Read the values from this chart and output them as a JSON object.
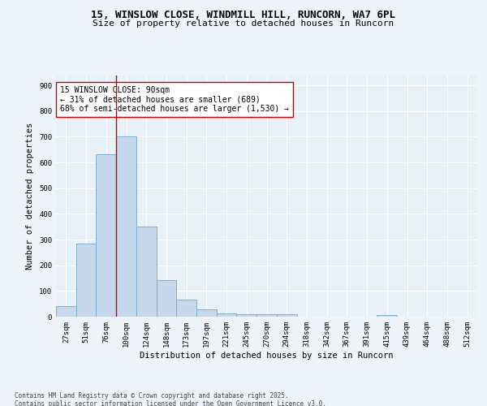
{
  "title_line1": "15, WINSLOW CLOSE, WINDMILL HILL, RUNCORN, WA7 6PL",
  "title_line2": "Size of property relative to detached houses in Runcorn",
  "xlabel": "Distribution of detached houses by size in Runcorn",
  "ylabel": "Number of detached properties",
  "categories": [
    "27sqm",
    "51sqm",
    "76sqm",
    "100sqm",
    "124sqm",
    "148sqm",
    "173sqm",
    "197sqm",
    "221sqm",
    "245sqm",
    "270sqm",
    "294sqm",
    "318sqm",
    "342sqm",
    "367sqm",
    "391sqm",
    "415sqm",
    "439sqm",
    "464sqm",
    "488sqm",
    "512sqm"
  ],
  "values": [
    42,
    283,
    633,
    700,
    350,
    143,
    65,
    28,
    14,
    11,
    11,
    11,
    0,
    0,
    0,
    0,
    7,
    0,
    0,
    0,
    0
  ],
  "bar_color": "#c8d8ec",
  "bar_edgecolor": "#7aafd4",
  "vline_color": "#cc0000",
  "vline_x_index": 2.5,
  "annotation_text": "15 WINSLOW CLOSE: 90sqm\n← 31% of detached houses are smaller (689)\n68% of semi-detached houses are larger (1,530) →",
  "annotation_box_facecolor": "#ffffff",
  "annotation_box_edgecolor": "#cc0000",
  "ylim": [
    0,
    940
  ],
  "yticks": [
    0,
    100,
    200,
    300,
    400,
    500,
    600,
    700,
    800,
    900
  ],
  "footer_text": "Contains HM Land Registry data © Crown copyright and database right 2025.\nContains public sector information licensed under the Open Government Licence v3.0.",
  "bg_color": "#eef4fa",
  "plot_bg_color": "#e8f0f8",
  "grid_color": "#ffffff",
  "title_fontsize": 9,
  "subtitle_fontsize": 8,
  "axis_label_fontsize": 7.5,
  "tick_fontsize": 6.5,
  "annotation_fontsize": 7,
  "footer_fontsize": 5.5
}
